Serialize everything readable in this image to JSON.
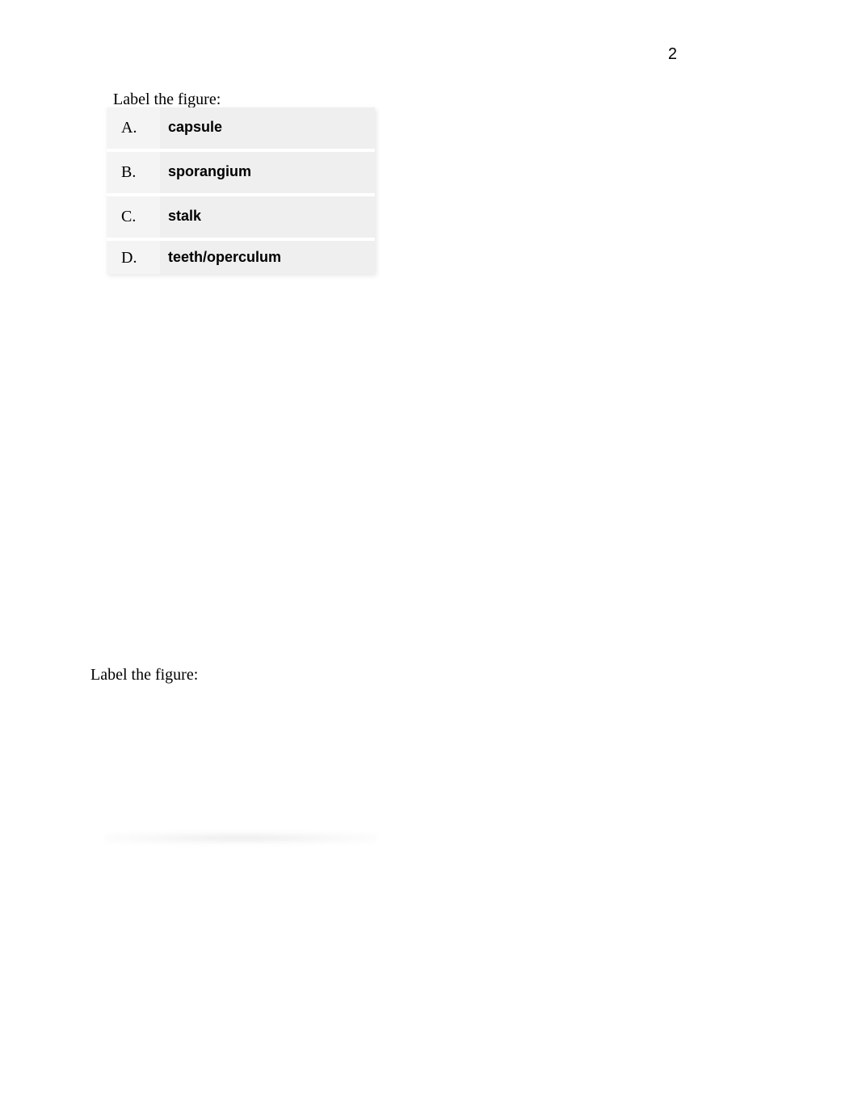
{
  "page_number": "2",
  "heading_1": "Label the figure:",
  "heading_2": "Label the figure:",
  "rows": [
    {
      "letter": "A.",
      "answer": "capsule"
    },
    {
      "letter": "B.",
      "answer": "sporangium"
    },
    {
      "letter": "C.",
      "answer": "stalk"
    },
    {
      "letter": "D.",
      "answer": "teeth/operculum"
    }
  ]
}
